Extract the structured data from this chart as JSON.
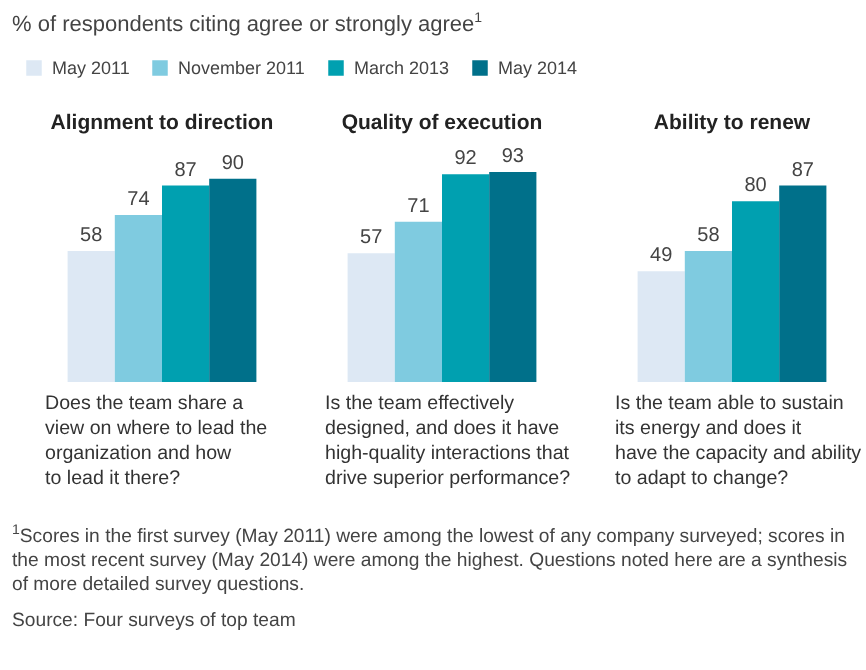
{
  "chart_data": [
    {
      "type": "bar",
      "title": "Alignment to direction",
      "subtitle": "% of respondents citing agree or strongly agree$^{1}$",
      "xlabel": "Does the team share a\nview on where to lead the\norganization and how\nto lead it there?",
      "categories": [
        null
      ],
      "legend": "top right",
      "data_labels": true,
      "grid": false,
      "series": [
        {
          "name": "May 2011",
          "color": "#dde8f4",
          "values": [
            58
          ]
        },
        {
          "name": "November 2011",
          "color": "#7fcbe0",
          "values": [
            74
          ]
        },
        {
          "name": "March 2013",
          "color": "#00a0b0",
          "values": [
            87
          ]
        },
        {
          "name": "May 2014",
          "color": "#00708a",
          "values": [
            90
          ]
        }
      ],
      "annotations": [
        "$^{1}$Scores in the first survey (May 2011) were among the lowest of any company surveyed; scores in the most recent survey (May 2014) were among the highest. Questions noted here are a synthesis of more detailed survey questions.",
        "Source: Four surveys of top team"
      ]
    },
    {
      "type": "bar",
      "title": "Quality of execution",
      "xlabel": "Is the team effectively\ndesigned, and does it have\nhigh-quality interactions that\ndrive superior performance?",
      "categories": [
        null
      ],
      "data_labels": true,
      "grid": false,
      "series": [
        {
          "name": "May 2011",
          "color": "#dde8f4",
          "values": [
            57
          ]
        },
        {
          "name": "November 2011",
          "color": "#7fcbe0",
          "values": [
            71
          ]
        },
        {
          "name": "March 2013",
          "color": "#00a0b0",
          "values": [
            92
          ]
        },
        {
          "name": "May 2014",
          "color": "#00708a",
          "values": [
            93
          ]
        }
      ]
    },
    {
      "type": "bar",
      "title": "Ability to renew",
      "xlabel": "Is the team able to sustain\nits energy and does it\nhave the capacity and ability\nto adapt to change?",
      "categories": [
        null
      ],
      "data_labels": true,
      "grid": false,
      "series": [
        {
          "name": "May 2011",
          "color": "#dde8f4",
          "values": [
            49
          ]
        },
        {
          "name": "November 2011",
          "color": "#7fcbe0",
          "values": [
            58
          ]
        },
        {
          "name": "March 2013",
          "color": "#00a0b0",
          "values": [
            80
          ]
        },
        {
          "name": "May 2014",
          "color": "#00708a",
          "values": [
            87
          ]
        }
      ]
    }
  ]
}
